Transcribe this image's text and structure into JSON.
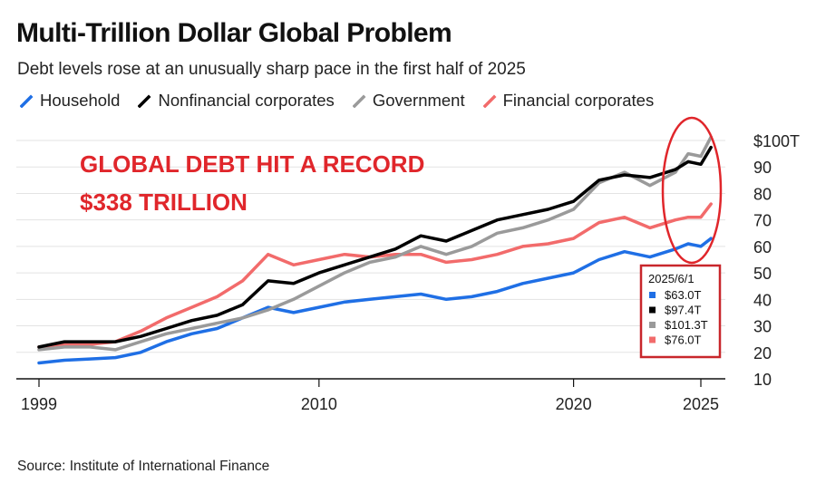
{
  "title": "Multi-Trillion Dollar Global Problem",
  "subtitle": "Debt levels rose at an unusually sharp pace in the first half of 2025",
  "source": "Source: Institute of International Finance",
  "annotation": {
    "line1": "GLOBAL DEBT HIT A RECORD",
    "line2": "$338 TRILLION",
    "color": "#e0262b"
  },
  "tooltip": {
    "date": "2025/6/1",
    "rows": [
      {
        "label": "$63.0T",
        "color": "#1f6fe5"
      },
      {
        "label": "$97.4T",
        "color": "#000000"
      },
      {
        "label": "$101.3T",
        "color": "#9a9a9a"
      },
      {
        "label": "$76.0T",
        "color": "#f26b6b"
      }
    ]
  },
  "chart_data": {
    "type": "line",
    "title": "Multi-Trillion Dollar Global Problem",
    "xlabel": "",
    "ylabel": "",
    "xlim": [
      1999,
      2025.5
    ],
    "ylim": [
      10,
      102
    ],
    "x_ticks": [
      1999,
      2010,
      2020,
      2025
    ],
    "y_ticks": [
      10,
      20,
      30,
      40,
      50,
      60,
      70,
      80,
      90,
      100
    ],
    "y_tick_labels": [
      "10",
      "20",
      "30",
      "40",
      "50",
      "60",
      "70",
      "80",
      "90",
      "$100T"
    ],
    "legend_position": "top",
    "x": [
      1999,
      2000,
      2001,
      2002,
      2003,
      2004,
      2005,
      2006,
      2007,
      2008,
      2009,
      2010,
      2011,
      2012,
      2013,
      2014,
      2015,
      2016,
      2017,
      2018,
      2019,
      2020,
      2021,
      2022,
      2023,
      2024,
      2024.5,
      2025,
      2025.4
    ],
    "series": [
      {
        "name": "Household",
        "color": "#1f6fe5",
        "values": [
          16,
          17,
          17.5,
          18,
          20,
          24,
          27,
          29,
          33,
          37,
          35,
          37,
          39,
          40,
          41,
          42,
          40,
          41,
          43,
          46,
          48,
          50,
          55,
          58,
          56,
          59,
          61,
          60,
          63.0
        ]
      },
      {
        "name": "Nonfinancial corporates",
        "color": "#000000",
        "values": [
          22,
          24,
          24,
          24,
          26,
          29,
          32,
          34,
          38,
          47,
          46,
          50,
          53,
          56,
          59,
          64,
          62,
          66,
          70,
          72,
          74,
          77,
          85,
          87,
          86,
          89,
          92,
          91,
          97.4
        ]
      },
      {
        "name": "Government",
        "color": "#9a9a9a",
        "values": [
          21,
          22,
          22,
          21,
          24,
          27,
          29,
          31,
          33,
          36,
          40,
          45,
          50,
          54,
          56,
          60,
          57,
          60,
          65,
          67,
          70,
          74,
          84,
          88,
          83,
          88,
          95,
          94,
          101.3
        ]
      },
      {
        "name": "Financial corporates",
        "color": "#f26b6b",
        "values": [
          22,
          23,
          23,
          24,
          28,
          33,
          37,
          41,
          47,
          57,
          53,
          55,
          57,
          56,
          57,
          57,
          54,
          55,
          57,
          60,
          61,
          63,
          69,
          71,
          67,
          70,
          71,
          71,
          76.0
        ]
      }
    ]
  }
}
